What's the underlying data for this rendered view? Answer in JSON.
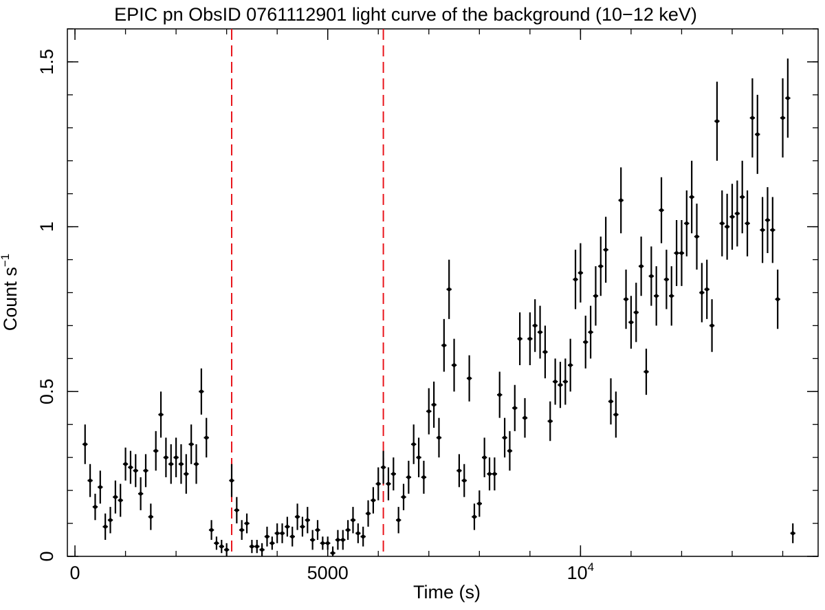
{
  "chart_data": {
    "type": "scatter",
    "title": "EPIC pn ObsID 0761112901 light curve of the background (10−12 keV)",
    "xlabel": "Time (s)",
    "ylabel_main": "Count s",
    "ylabel_sup": "−1",
    "xlim": [
      -150,
      14700
    ],
    "ylim": [
      0,
      1.6
    ],
    "x_ticks": [
      {
        "value": 0,
        "label": "0"
      },
      {
        "value": 5000,
        "label": "5000"
      },
      {
        "value": 10000,
        "label": "10",
        "sup": "4"
      }
    ],
    "y_ticks": [
      {
        "value": 0,
        "label": "0"
      },
      {
        "value": 0.5,
        "label": "0.5"
      },
      {
        "value": 1,
        "label": "1"
      },
      {
        "value": 1.5,
        "label": "1.5"
      }
    ],
    "x_minor_step": 1000,
    "y_minor_step": 0.1,
    "bin_halfwidth": 50,
    "marker_color": "#000000",
    "cut_color": "#e8141b",
    "vertical_cuts": [
      3100,
      6100
    ],
    "series": [
      {
        "points": [
          [
            200,
            0.34,
            0.06
          ],
          [
            300,
            0.23,
            0.05
          ],
          [
            400,
            0.15,
            0.04
          ],
          [
            500,
            0.21,
            0.05
          ],
          [
            600,
            0.09,
            0.04
          ],
          [
            700,
            0.11,
            0.04
          ],
          [
            800,
            0.18,
            0.05
          ],
          [
            900,
            0.17,
            0.05
          ],
          [
            1000,
            0.28,
            0.05
          ],
          [
            1100,
            0.27,
            0.05
          ],
          [
            1200,
            0.26,
            0.05
          ],
          [
            1300,
            0.19,
            0.05
          ],
          [
            1400,
            0.26,
            0.05
          ],
          [
            1500,
            0.12,
            0.04
          ],
          [
            1600,
            0.32,
            0.06
          ],
          [
            1700,
            0.43,
            0.07
          ],
          [
            1800,
            0.3,
            0.06
          ],
          [
            1900,
            0.28,
            0.06
          ],
          [
            2000,
            0.3,
            0.06
          ],
          [
            2100,
            0.28,
            0.06
          ],
          [
            2200,
            0.25,
            0.06
          ],
          [
            2300,
            0.34,
            0.06
          ],
          [
            2400,
            0.28,
            0.06
          ],
          [
            2500,
            0.5,
            0.07
          ],
          [
            2600,
            0.36,
            0.06
          ],
          [
            2700,
            0.08,
            0.03
          ],
          [
            2800,
            0.04,
            0.02
          ],
          [
            2900,
            0.03,
            0.02
          ],
          [
            3000,
            0.02,
            0.02
          ],
          [
            3100,
            0.23,
            0.05
          ],
          [
            3200,
            0.14,
            0.04
          ],
          [
            3300,
            0.08,
            0.03
          ],
          [
            3400,
            0.1,
            0.03
          ],
          [
            3500,
            0.03,
            0.02
          ],
          [
            3600,
            0.03,
            0.02
          ],
          [
            3700,
            0.02,
            0.02
          ],
          [
            3800,
            0.06,
            0.03
          ],
          [
            3900,
            0.04,
            0.02
          ],
          [
            4000,
            0.07,
            0.03
          ],
          [
            4100,
            0.07,
            0.03
          ],
          [
            4200,
            0.09,
            0.03
          ],
          [
            4300,
            0.06,
            0.03
          ],
          [
            4400,
            0.12,
            0.04
          ],
          [
            4500,
            0.09,
            0.03
          ],
          [
            4600,
            0.11,
            0.04
          ],
          [
            4700,
            0.05,
            0.03
          ],
          [
            4800,
            0.08,
            0.03
          ],
          [
            4900,
            0.04,
            0.02
          ],
          [
            5000,
            0.04,
            0.02
          ],
          [
            5100,
            0.01,
            0.02
          ],
          [
            5200,
            0.05,
            0.03
          ],
          [
            5300,
            0.05,
            0.03
          ],
          [
            5400,
            0.08,
            0.03
          ],
          [
            5500,
            0.11,
            0.04
          ],
          [
            5600,
            0.07,
            0.03
          ],
          [
            5700,
            0.06,
            0.03
          ],
          [
            5800,
            0.13,
            0.04
          ],
          [
            5900,
            0.17,
            0.04
          ],
          [
            6000,
            0.22,
            0.05
          ],
          [
            6100,
            0.27,
            0.05
          ],
          [
            6200,
            0.22,
            0.05
          ],
          [
            6300,
            0.25,
            0.05
          ],
          [
            6400,
            0.11,
            0.04
          ],
          [
            6500,
            0.18,
            0.04
          ],
          [
            6600,
            0.24,
            0.05
          ],
          [
            6700,
            0.34,
            0.06
          ],
          [
            6800,
            0.3,
            0.06
          ],
          [
            6900,
            0.24,
            0.05
          ],
          [
            7000,
            0.44,
            0.07
          ],
          [
            7100,
            0.46,
            0.07
          ],
          [
            7200,
            0.36,
            0.06
          ],
          [
            7300,
            0.64,
            0.08
          ],
          [
            7400,
            0.81,
            0.09
          ],
          [
            7500,
            0.58,
            0.08
          ],
          [
            7600,
            0.26,
            0.05
          ],
          [
            7700,
            0.23,
            0.05
          ],
          [
            7800,
            0.54,
            0.07
          ],
          [
            7900,
            0.12,
            0.04
          ],
          [
            8000,
            0.16,
            0.04
          ],
          [
            8100,
            0.3,
            0.06
          ],
          [
            8200,
            0.25,
            0.05
          ],
          [
            8300,
            0.25,
            0.05
          ],
          [
            8400,
            0.49,
            0.07
          ],
          [
            8500,
            0.36,
            0.06
          ],
          [
            8600,
            0.32,
            0.06
          ],
          [
            8700,
            0.45,
            0.07
          ],
          [
            8800,
            0.66,
            0.08
          ],
          [
            8900,
            0.42,
            0.06
          ],
          [
            9000,
            0.66,
            0.08
          ],
          [
            9100,
            0.7,
            0.08
          ],
          [
            9200,
            0.68,
            0.08
          ],
          [
            9300,
            0.62,
            0.08
          ],
          [
            9400,
            0.41,
            0.06
          ],
          [
            9500,
            0.53,
            0.07
          ],
          [
            9600,
            0.52,
            0.07
          ],
          [
            9700,
            0.53,
            0.07
          ],
          [
            9800,
            0.58,
            0.08
          ],
          [
            9900,
            0.84,
            0.09
          ],
          [
            10000,
            0.86,
            0.09
          ],
          [
            10100,
            0.65,
            0.08
          ],
          [
            10200,
            0.68,
            0.08
          ],
          [
            10300,
            0.79,
            0.09
          ],
          [
            10400,
            0.88,
            0.09
          ],
          [
            10500,
            0.93,
            0.1
          ],
          [
            10600,
            0.47,
            0.07
          ],
          [
            10700,
            0.43,
            0.07
          ],
          [
            10800,
            1.08,
            0.1
          ],
          [
            10900,
            0.78,
            0.09
          ],
          [
            11000,
            0.71,
            0.08
          ],
          [
            11100,
            0.74,
            0.09
          ],
          [
            11200,
            0.88,
            0.09
          ],
          [
            11300,
            0.56,
            0.07
          ],
          [
            11400,
            0.85,
            0.09
          ],
          [
            11500,
            0.79,
            0.09
          ],
          [
            11600,
            1.05,
            0.1
          ],
          [
            11700,
            0.84,
            0.09
          ],
          [
            11800,
            0.79,
            0.09
          ],
          [
            11900,
            0.92,
            0.1
          ],
          [
            12000,
            0.92,
            0.1
          ],
          [
            12100,
            1.01,
            0.1
          ],
          [
            12200,
            1.09,
            0.11
          ],
          [
            12300,
            0.97,
            0.1
          ],
          [
            12400,
            0.8,
            0.09
          ],
          [
            12500,
            0.81,
            0.09
          ],
          [
            12600,
            0.7,
            0.08
          ],
          [
            12700,
            1.32,
            0.12
          ],
          [
            12800,
            1.01,
            0.1
          ],
          [
            12900,
            1.0,
            0.1
          ],
          [
            13000,
            1.03,
            0.1
          ],
          [
            13100,
            1.04,
            0.1
          ],
          [
            13200,
            1.09,
            0.11
          ],
          [
            13300,
            1.01,
            0.1
          ],
          [
            13400,
            1.33,
            0.12
          ],
          [
            13500,
            1.28,
            0.12
          ],
          [
            13600,
            0.99,
            0.1
          ],
          [
            13700,
            1.02,
            0.1
          ],
          [
            13800,
            0.99,
            0.1
          ],
          [
            13900,
            0.78,
            0.09
          ],
          [
            14000,
            1.33,
            0.12
          ],
          [
            14100,
            1.39,
            0.12
          ],
          [
            14200,
            0.07,
            0.03
          ]
        ]
      }
    ]
  }
}
